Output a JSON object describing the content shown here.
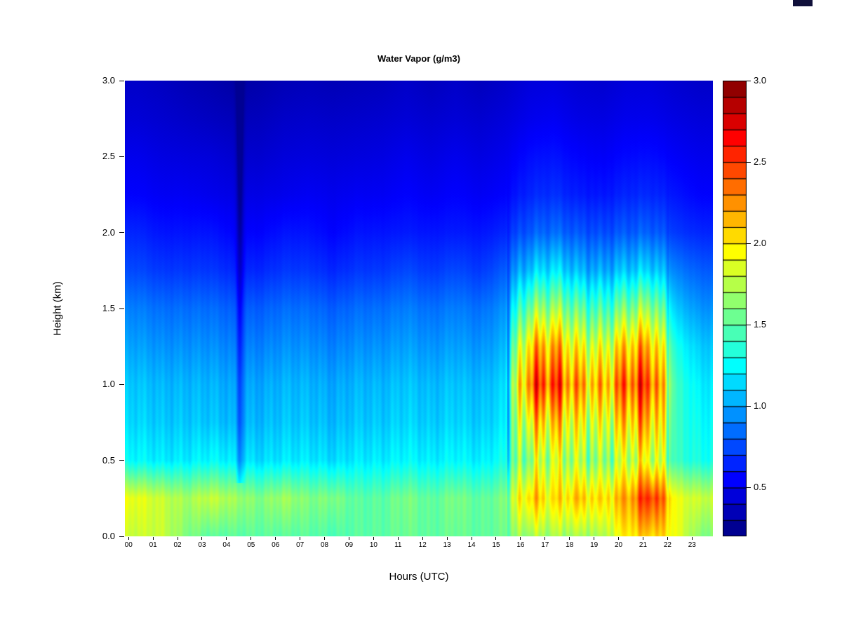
{
  "chart_data": {
    "type": "heatmap",
    "title": "Water Vapor (g/m3)",
    "xlabel": "Hours (UTC)",
    "ylabel": "Height (km)",
    "x_range": [
      0,
      24
    ],
    "y_range": [
      0,
      3
    ],
    "x_tick_labels": [
      "00",
      "01",
      "02",
      "03",
      "04",
      "05",
      "06",
      "07",
      "08",
      "09",
      "10",
      "11",
      "12",
      "13",
      "14",
      "15",
      "16",
      "17",
      "18",
      "19",
      "20",
      "21",
      "22",
      "23"
    ],
    "y_ticks": [
      0.0,
      0.5,
      1.0,
      1.5,
      2.0,
      2.5,
      3.0
    ],
    "colormap": "jet",
    "grid": false,
    "legend_position": "right-colorbar",
    "color_scale": {
      "min": 0.2,
      "max": 3.0,
      "ticks": [
        0.5,
        1.0,
        1.5,
        2.0,
        2.5,
        3.0
      ],
      "segments": 28
    },
    "hours": [
      0,
      1,
      2,
      3,
      4,
      5,
      6,
      7,
      8,
      9,
      10,
      11,
      12,
      13,
      14,
      15,
      16,
      17,
      18,
      19,
      20,
      21,
      22,
      23
    ],
    "heights": [
      0,
      0.25,
      0.5,
      0.75,
      1,
      1.25,
      1.5,
      1.75,
      2,
      2.25,
      2.5,
      2.75,
      3
    ],
    "values": [
      [
        1.8,
        1.8,
        1.6,
        1.5,
        1.5,
        1.5,
        1.5,
        1.5,
        1.45,
        1.5,
        1.5,
        1.55,
        1.5,
        1.55,
        1.5,
        1.55,
        1.7,
        1.7,
        1.7,
        1.7,
        2.0,
        2.1,
        1.9,
        1.6
      ],
      [
        1.9,
        1.8,
        1.7,
        1.8,
        1.7,
        1.6,
        1.7,
        1.6,
        1.6,
        1.5,
        1.5,
        1.6,
        1.5,
        1.6,
        1.5,
        1.6,
        2.1,
        2.0,
        2.1,
        2.0,
        2.2,
        2.6,
        1.9,
        1.8
      ],
      [
        1.25,
        1.2,
        1.2,
        1.25,
        1.2,
        1.15,
        1.2,
        1.2,
        1.15,
        1.2,
        1.2,
        1.25,
        1.2,
        1.25,
        1.2,
        1.3,
        1.7,
        1.8,
        1.7,
        1.6,
        1.8,
        1.9,
        1.4,
        1.3
      ],
      [
        1.15,
        1.1,
        1.1,
        1.1,
        1.05,
        1.05,
        1.1,
        1.1,
        1.05,
        1.1,
        1.1,
        1.15,
        1.1,
        1.15,
        1.1,
        1.2,
        2.0,
        2.1,
        1.9,
        1.8,
        2.1,
        2.2,
        1.4,
        1.25
      ],
      [
        1.1,
        1.05,
        1.05,
        1.05,
        1.0,
        1.0,
        1.05,
        1.05,
        1.0,
        1.05,
        1.05,
        1.1,
        1.05,
        1.1,
        1.05,
        1.15,
        2.4,
        2.5,
        2.2,
        2.1,
        2.4,
        2.5,
        1.4,
        1.2
      ],
      [
        1.0,
        0.95,
        0.95,
        0.95,
        0.9,
        0.9,
        0.95,
        0.95,
        0.9,
        0.95,
        0.95,
        1.0,
        0.95,
        1.0,
        0.95,
        1.05,
        2.1,
        2.2,
        1.9,
        1.8,
        2.1,
        2.2,
        1.3,
        1.1
      ],
      [
        0.9,
        0.85,
        0.85,
        0.85,
        0.8,
        0.8,
        0.85,
        0.85,
        0.8,
        0.85,
        0.85,
        0.9,
        0.85,
        0.9,
        0.85,
        0.95,
        1.6,
        1.7,
        1.5,
        1.4,
        1.6,
        1.7,
        1.1,
        0.95
      ],
      [
        0.75,
        0.7,
        0.7,
        0.7,
        0.65,
        0.65,
        0.7,
        0.7,
        0.65,
        0.7,
        0.7,
        0.75,
        0.7,
        0.75,
        0.7,
        0.8,
        1.1,
        1.2,
        1.05,
        1.0,
        1.1,
        1.15,
        0.9,
        0.8
      ],
      [
        0.65,
        0.6,
        0.6,
        0.6,
        0.55,
        0.55,
        0.6,
        0.6,
        0.55,
        0.6,
        0.6,
        0.62,
        0.6,
        0.62,
        0.6,
        0.65,
        0.8,
        0.85,
        0.78,
        0.75,
        0.8,
        0.82,
        0.7,
        0.65
      ],
      [
        0.55,
        0.52,
        0.52,
        0.5,
        0.48,
        0.48,
        0.5,
        0.52,
        0.5,
        0.52,
        0.52,
        0.55,
        0.52,
        0.55,
        0.52,
        0.55,
        0.65,
        0.68,
        0.62,
        0.6,
        0.65,
        0.66,
        0.6,
        0.55
      ],
      [
        0.5,
        0.47,
        0.46,
        0.45,
        0.42,
        0.42,
        0.45,
        0.46,
        0.45,
        0.46,
        0.47,
        0.5,
        0.47,
        0.5,
        0.47,
        0.5,
        0.58,
        0.6,
        0.55,
        0.53,
        0.57,
        0.58,
        0.53,
        0.5
      ],
      [
        0.44,
        0.42,
        0.4,
        0.38,
        0.36,
        0.37,
        0.4,
        0.41,
        0.4,
        0.41,
        0.42,
        0.44,
        0.42,
        0.44,
        0.42,
        0.45,
        0.5,
        0.52,
        0.48,
        0.47,
        0.5,
        0.5,
        0.47,
        0.45
      ],
      [
        0.4,
        0.38,
        0.35,
        0.33,
        0.3,
        0.32,
        0.35,
        0.36,
        0.35,
        0.36,
        0.37,
        0.4,
        0.37,
        0.4,
        0.37,
        0.4,
        0.45,
        0.46,
        0.43,
        0.42,
        0.45,
        0.45,
        0.42,
        0.4
      ]
    ],
    "anomalies": [
      {
        "hour": 4.7,
        "delta": -0.25,
        "sigma": 0.1,
        "height_min": 0.35
      }
    ],
    "texture": {
      "stripe_region": [
        15.6,
        22.2
      ],
      "stripe_amp": 0.38,
      "base_noise": 0.06
    }
  }
}
